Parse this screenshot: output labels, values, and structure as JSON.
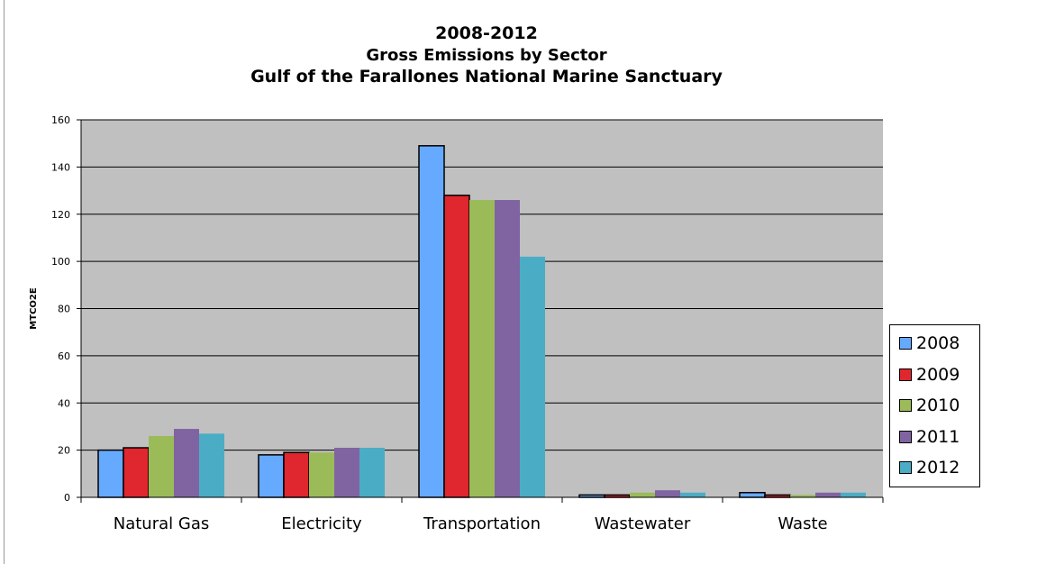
{
  "chart_data": {
    "type": "bar",
    "title_lines": [
      "2008-2012",
      "Gross Emissions by Sector",
      "Gulf of the Farallones National Marine Sanctuary"
    ],
    "xlabel": "",
    "ylabel": "MTCO2E",
    "ylim": [
      0,
      160
    ],
    "yticks": [
      0,
      20,
      40,
      60,
      80,
      100,
      120,
      140,
      160
    ],
    "grid": true,
    "legend_position": "right",
    "categories": [
      "Natural Gas",
      "Electricity",
      "Transportation",
      "Wastewater",
      "Waste"
    ],
    "series": [
      {
        "name": "2008",
        "color": "#66AAFF",
        "values": [
          20,
          18,
          149,
          1,
          2
        ]
      },
      {
        "name": "2009",
        "color": "#E0262E",
        "values": [
          21,
          19,
          128,
          1,
          1
        ]
      },
      {
        "name": "2010",
        "color": "#9BBB59",
        "values": [
          26,
          19,
          126,
          2,
          1
        ]
      },
      {
        "name": "2011",
        "color": "#8064A2",
        "values": [
          29,
          21,
          126,
          3,
          2
        ]
      },
      {
        "name": "2012",
        "color": "#4BACC6",
        "values": [
          27,
          21,
          102,
          2,
          2
        ]
      }
    ],
    "plot_background": "#C0C0C0"
  }
}
